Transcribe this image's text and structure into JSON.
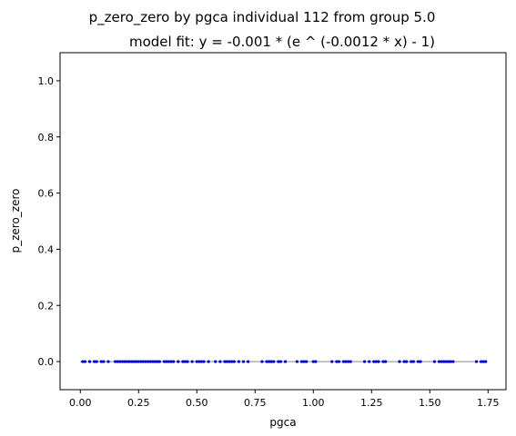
{
  "chart_data": {
    "type": "scatter",
    "title": "p_zero_zero by pgca individual 112 from group 5.0",
    "subtitle": "model fit: y = -0.001 * (e ^ (-0.0012 * x) - 1)",
    "xlabel": "pgca",
    "ylabel": "p_zero_zero",
    "xlim": [
      -0.087,
      1.827
    ],
    "ylim": [
      -0.1,
      1.1
    ],
    "xticks": [
      0.0,
      0.25,
      0.5,
      0.75,
      1.0,
      1.25,
      1.5,
      1.75
    ],
    "xtick_labels": [
      "0.00",
      "0.25",
      "0.50",
      "0.75",
      "1.00",
      "1.25",
      "1.50",
      "1.75"
    ],
    "yticks": [
      0.0,
      0.2,
      0.4,
      0.6,
      0.8,
      1.0
    ],
    "ytick_labels": [
      "0.0",
      "0.2",
      "0.4",
      "0.6",
      "0.8",
      "1.0"
    ],
    "grid": false,
    "legend": "none",
    "point_color": "#0000cc",
    "fit_line_color": "#b0b0b0",
    "fit_line": {
      "x": [
        0.0,
        1.74
      ],
      "y": [
        0.0,
        0.0
      ]
    },
    "x": [
      0.01,
      0.02,
      0.04,
      0.06,
      0.07,
      0.09,
      0.1,
      0.12,
      0.15,
      0.16,
      0.17,
      0.18,
      0.19,
      0.2,
      0.21,
      0.22,
      0.23,
      0.24,
      0.25,
      0.26,
      0.27,
      0.28,
      0.29,
      0.3,
      0.31,
      0.32,
      0.33,
      0.34,
      0.36,
      0.37,
      0.38,
      0.39,
      0.4,
      0.42,
      0.44,
      0.45,
      0.46,
      0.48,
      0.5,
      0.51,
      0.52,
      0.53,
      0.55,
      0.58,
      0.6,
      0.62,
      0.63,
      0.64,
      0.65,
      0.66,
      0.68,
      0.7,
      0.72,
      0.78,
      0.8,
      0.81,
      0.82,
      0.83,
      0.85,
      0.86,
      0.88,
      0.93,
      0.95,
      0.96,
      0.97,
      1.0,
      1.01,
      1.08,
      1.1,
      1.11,
      1.13,
      1.14,
      1.15,
      1.16,
      1.22,
      1.24,
      1.26,
      1.27,
      1.28,
      1.3,
      1.31,
      1.37,
      1.39,
      1.4,
      1.42,
      1.43,
      1.45,
      1.46,
      1.52,
      1.54,
      1.55,
      1.56,
      1.57,
      1.58,
      1.59,
      1.6,
      1.7,
      1.72,
      1.73,
      1.74
    ],
    "y": [
      0,
      0,
      0,
      0,
      0,
      0,
      0,
      0,
      0,
      0,
      0,
      0,
      0,
      0,
      0,
      0,
      0,
      0,
      0,
      0,
      0,
      0,
      0,
      0,
      0,
      0,
      0,
      0,
      0,
      0,
      0,
      0,
      0,
      0,
      0,
      0,
      0,
      0,
      0,
      0,
      0,
      0,
      0,
      0,
      0,
      0,
      0,
      0,
      0,
      0,
      0,
      0,
      0,
      0,
      0,
      0,
      0,
      0,
      0,
      0,
      0,
      0,
      0,
      0,
      0,
      0,
      0,
      0,
      0,
      0,
      0,
      0,
      0,
      0,
      0,
      0,
      0,
      0,
      0,
      0,
      0,
      0,
      0,
      0,
      0,
      0,
      0,
      0,
      0,
      0,
      0,
      0,
      0,
      0,
      0,
      0,
      0,
      0,
      0,
      0
    ]
  }
}
